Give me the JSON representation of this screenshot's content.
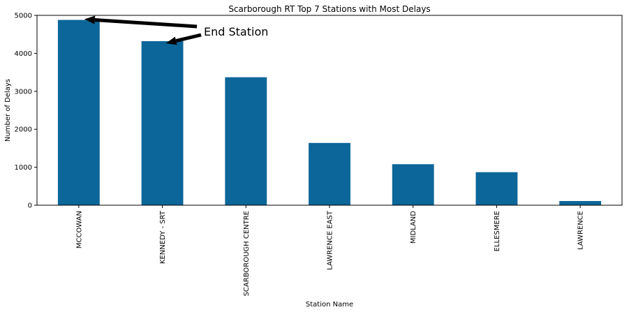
{
  "chart_data": {
    "type": "bar",
    "title": "Scarborough RT Top 7 Stations with Most Delays",
    "xlabel": "Station Name",
    "ylabel": "Number of Delays",
    "categories": [
      "MCCOWAN",
      "KENNEDY - SRT",
      "SCARBOROUGH CENTRE",
      "LAWRENCE EAST",
      "MIDLAND",
      "ELLESMERE",
      "LAWRENCE"
    ],
    "values": [
      4880,
      4320,
      3370,
      1640,
      1080,
      870,
      110
    ],
    "ylim": [
      0,
      5000
    ],
    "yticks": [
      0,
      1000,
      2000,
      3000,
      4000,
      5000
    ],
    "grid": false,
    "bar_color": "#0c6699",
    "annotation": {
      "text": "End Station",
      "targets": [
        "MCCOWAN",
        "KENNEDY - SRT"
      ]
    }
  }
}
